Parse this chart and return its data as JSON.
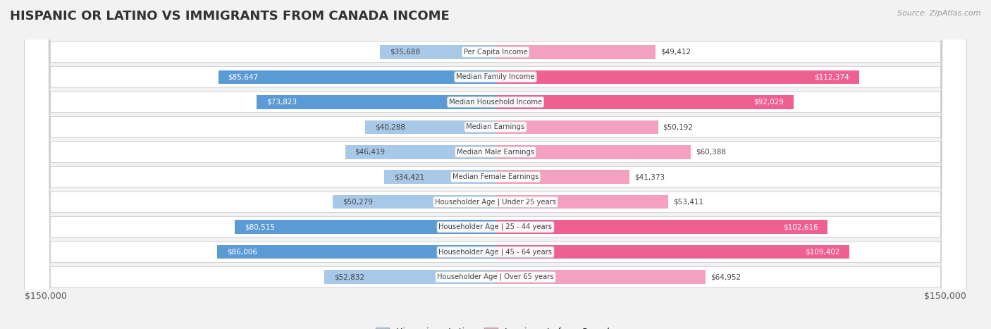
{
  "title": "HISPANIC OR LATINO VS IMMIGRANTS FROM CANADA INCOME",
  "source": "Source: ZipAtlas.com",
  "categories": [
    "Per Capita Income",
    "Median Family Income",
    "Median Household Income",
    "Median Earnings",
    "Median Male Earnings",
    "Median Female Earnings",
    "Householder Age | Under 25 years",
    "Householder Age | 25 - 44 years",
    "Householder Age | 45 - 64 years",
    "Householder Age | Over 65 years"
  ],
  "hispanic_values": [
    35688,
    85647,
    73823,
    40288,
    46419,
    34421,
    50279,
    80515,
    86006,
    52832
  ],
  "canada_values": [
    49412,
    112374,
    92029,
    50192,
    60388,
    41373,
    53411,
    102616,
    109402,
    64952
  ],
  "hispanic_labels": [
    "$35,688",
    "$85,647",
    "$73,823",
    "$40,288",
    "$46,419",
    "$34,421",
    "$50,279",
    "$80,515",
    "$86,006",
    "$52,832"
  ],
  "canada_labels": [
    "$49,412",
    "$112,374",
    "$92,029",
    "$50,192",
    "$60,388",
    "$41,373",
    "$53,411",
    "$102,616",
    "$109,402",
    "$64,952"
  ],
  "max_value": 150000,
  "hispanic_color_light": "#a8c8e8",
  "hispanic_color_dark": "#5b9bd5",
  "canada_color_light": "#f4a0c0",
  "canada_color_dark": "#ee6090",
  "bg_color": "#f2f2f2",
  "legend_hispanic": "Hispanic or Latino",
  "legend_canada": "Immigrants from Canada",
  "xlabel_left": "$150,000",
  "xlabel_right": "$150,000",
  "hispanic_dark_threshold": 60000,
  "canada_dark_threshold": 80000
}
